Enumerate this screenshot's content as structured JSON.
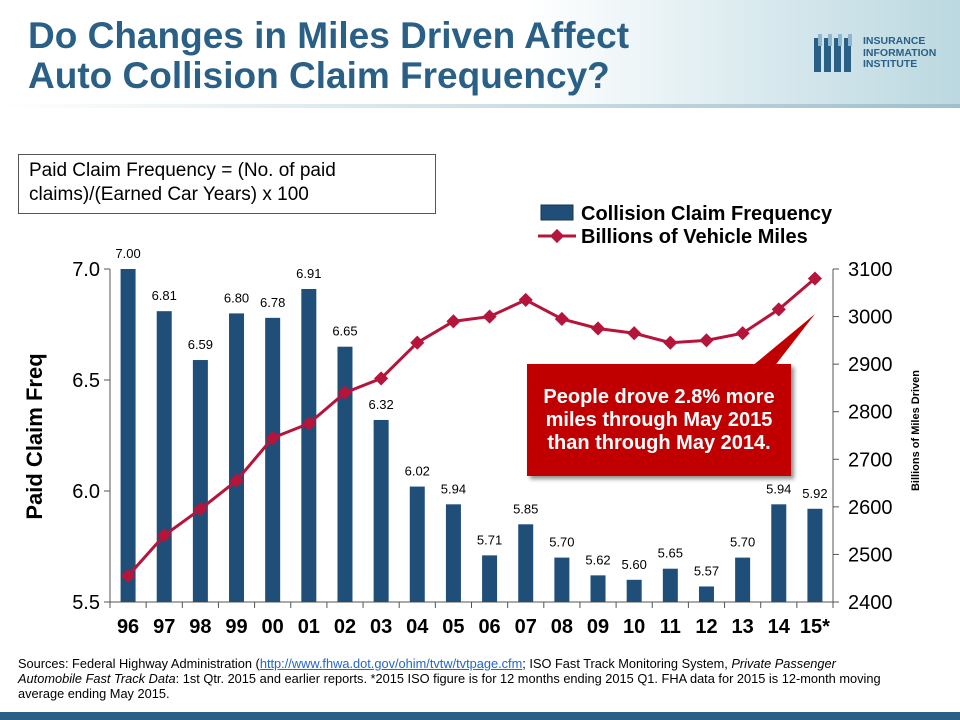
{
  "header": {
    "title_line1": "Do Changes in Miles Driven Affect",
    "title_line2": "Auto Collision Claim Frequency?"
  },
  "logo": {
    "line1": "INSURANCE",
    "line2": "INFORMATION",
    "line3": "INSTITUTE"
  },
  "formula_box": {
    "text": "Paid Claim Frequency = (No. of paid claims)/(Earned Car Years) x 100"
  },
  "callout": {
    "text": "People drove 2.8% more miles through May 2015 than through May 2014."
  },
  "sources": {
    "prefix": "Sources: Federal Highway Administration (",
    "link": "http://www.fhwa.dot.gov/ohim/tvtw/tvtpage.cfm",
    "suffix_part1": "; ISO Fast Track Monitoring System, ",
    "italic": "Private Passenger Automobile Fast Track Data",
    "suffix_part2": ": 1st Qtr. 2015 and earlier reports. *2015 ISO figure is for 12 months ending 2015 Q1. FHA data for 2015 is 12-month moving average ending May 2015."
  },
  "colors": {
    "bar": "#1f4e79",
    "line": "#b5153a",
    "title": "#2a5f86",
    "callout": "#c00000"
  },
  "chart_data": {
    "type": "bar",
    "categories": [
      "96",
      "97",
      "98",
      "99",
      "00",
      "01",
      "02",
      "03",
      "04",
      "05",
      "06",
      "07",
      "08",
      "09",
      "10",
      "11",
      "12",
      "13",
      "14",
      "15*"
    ],
    "series": [
      {
        "name": "Collision Claim Frequency",
        "type": "bar",
        "axis": "left",
        "values": [
          7.0,
          6.81,
          6.59,
          6.8,
          6.78,
          6.91,
          6.65,
          6.32,
          6.02,
          5.94,
          5.71,
          5.85,
          5.7,
          5.62,
          5.6,
          5.65,
          5.57,
          5.7,
          5.94,
          5.92
        ],
        "labels": [
          "7.00",
          "6.81",
          "6.59",
          "6.80",
          "6.78",
          "6.91",
          "6.65",
          "6.32",
          "6.02",
          "5.94",
          "5.71",
          "5.85",
          "5.70",
          "5.62",
          "5.60",
          "5.65",
          "5.57",
          "5.70",
          "5.94",
          "5.92"
        ]
      },
      {
        "name": "Billions of Vehicle Miles",
        "type": "line",
        "axis": "right",
        "values": [
          2455,
          2540,
          2595,
          2655,
          2745,
          2775,
          2840,
          2870,
          2945,
          2990,
          3000,
          3035,
          2995,
          2975,
          2965,
          2945,
          2950,
          2965,
          3015,
          3080
        ]
      }
    ],
    "ylabel": "Paid Claim Freq",
    "y2label": "Billions of Miles Driven",
    "ylim": [
      5.5,
      7.0
    ],
    "yticks": [
      "5.5",
      "6.0",
      "6.5",
      "7.0"
    ],
    "y2lim": [
      2400,
      3100
    ],
    "y2ticks": [
      "2400",
      "2500",
      "2600",
      "2700",
      "2800",
      "2900",
      "3000",
      "3100"
    ],
    "legend_position": "top-right",
    "grid": false
  }
}
